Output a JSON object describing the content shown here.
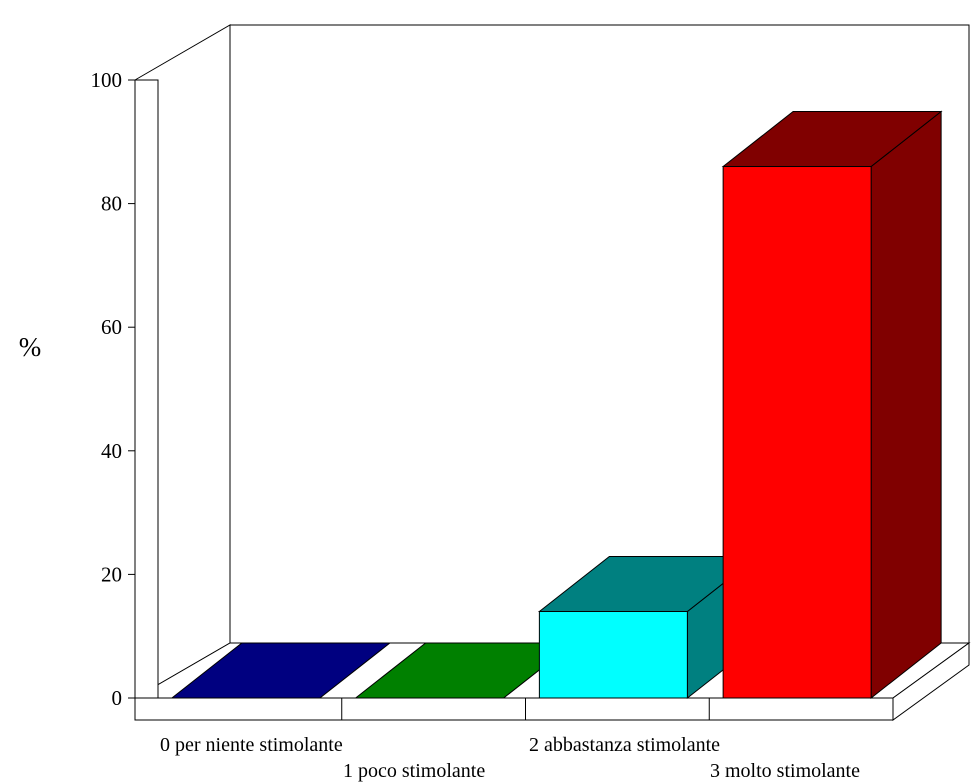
{
  "chart_data": {
    "type": "bar",
    "title": "",
    "xlabel": "",
    "ylabel": "%",
    "ylim": [
      0,
      100
    ],
    "yticks": [
      0,
      20,
      40,
      60,
      80,
      100
    ],
    "grid": false,
    "legend": "none",
    "categories": [
      "0 per niente stimolante",
      "1 poco stimolante",
      "2 abbastanza stimolante",
      "3 molto stimolante"
    ],
    "values": [
      0,
      0,
      14,
      86
    ],
    "colors": {
      "front": [
        "#000080",
        "#008000",
        "#00ffff",
        "#ff0000"
      ],
      "side": [
        "#000080",
        "#008000",
        "#008080",
        "#800000"
      ],
      "top": [
        "#000080",
        "#008000",
        "#008080",
        "#800000"
      ]
    }
  }
}
